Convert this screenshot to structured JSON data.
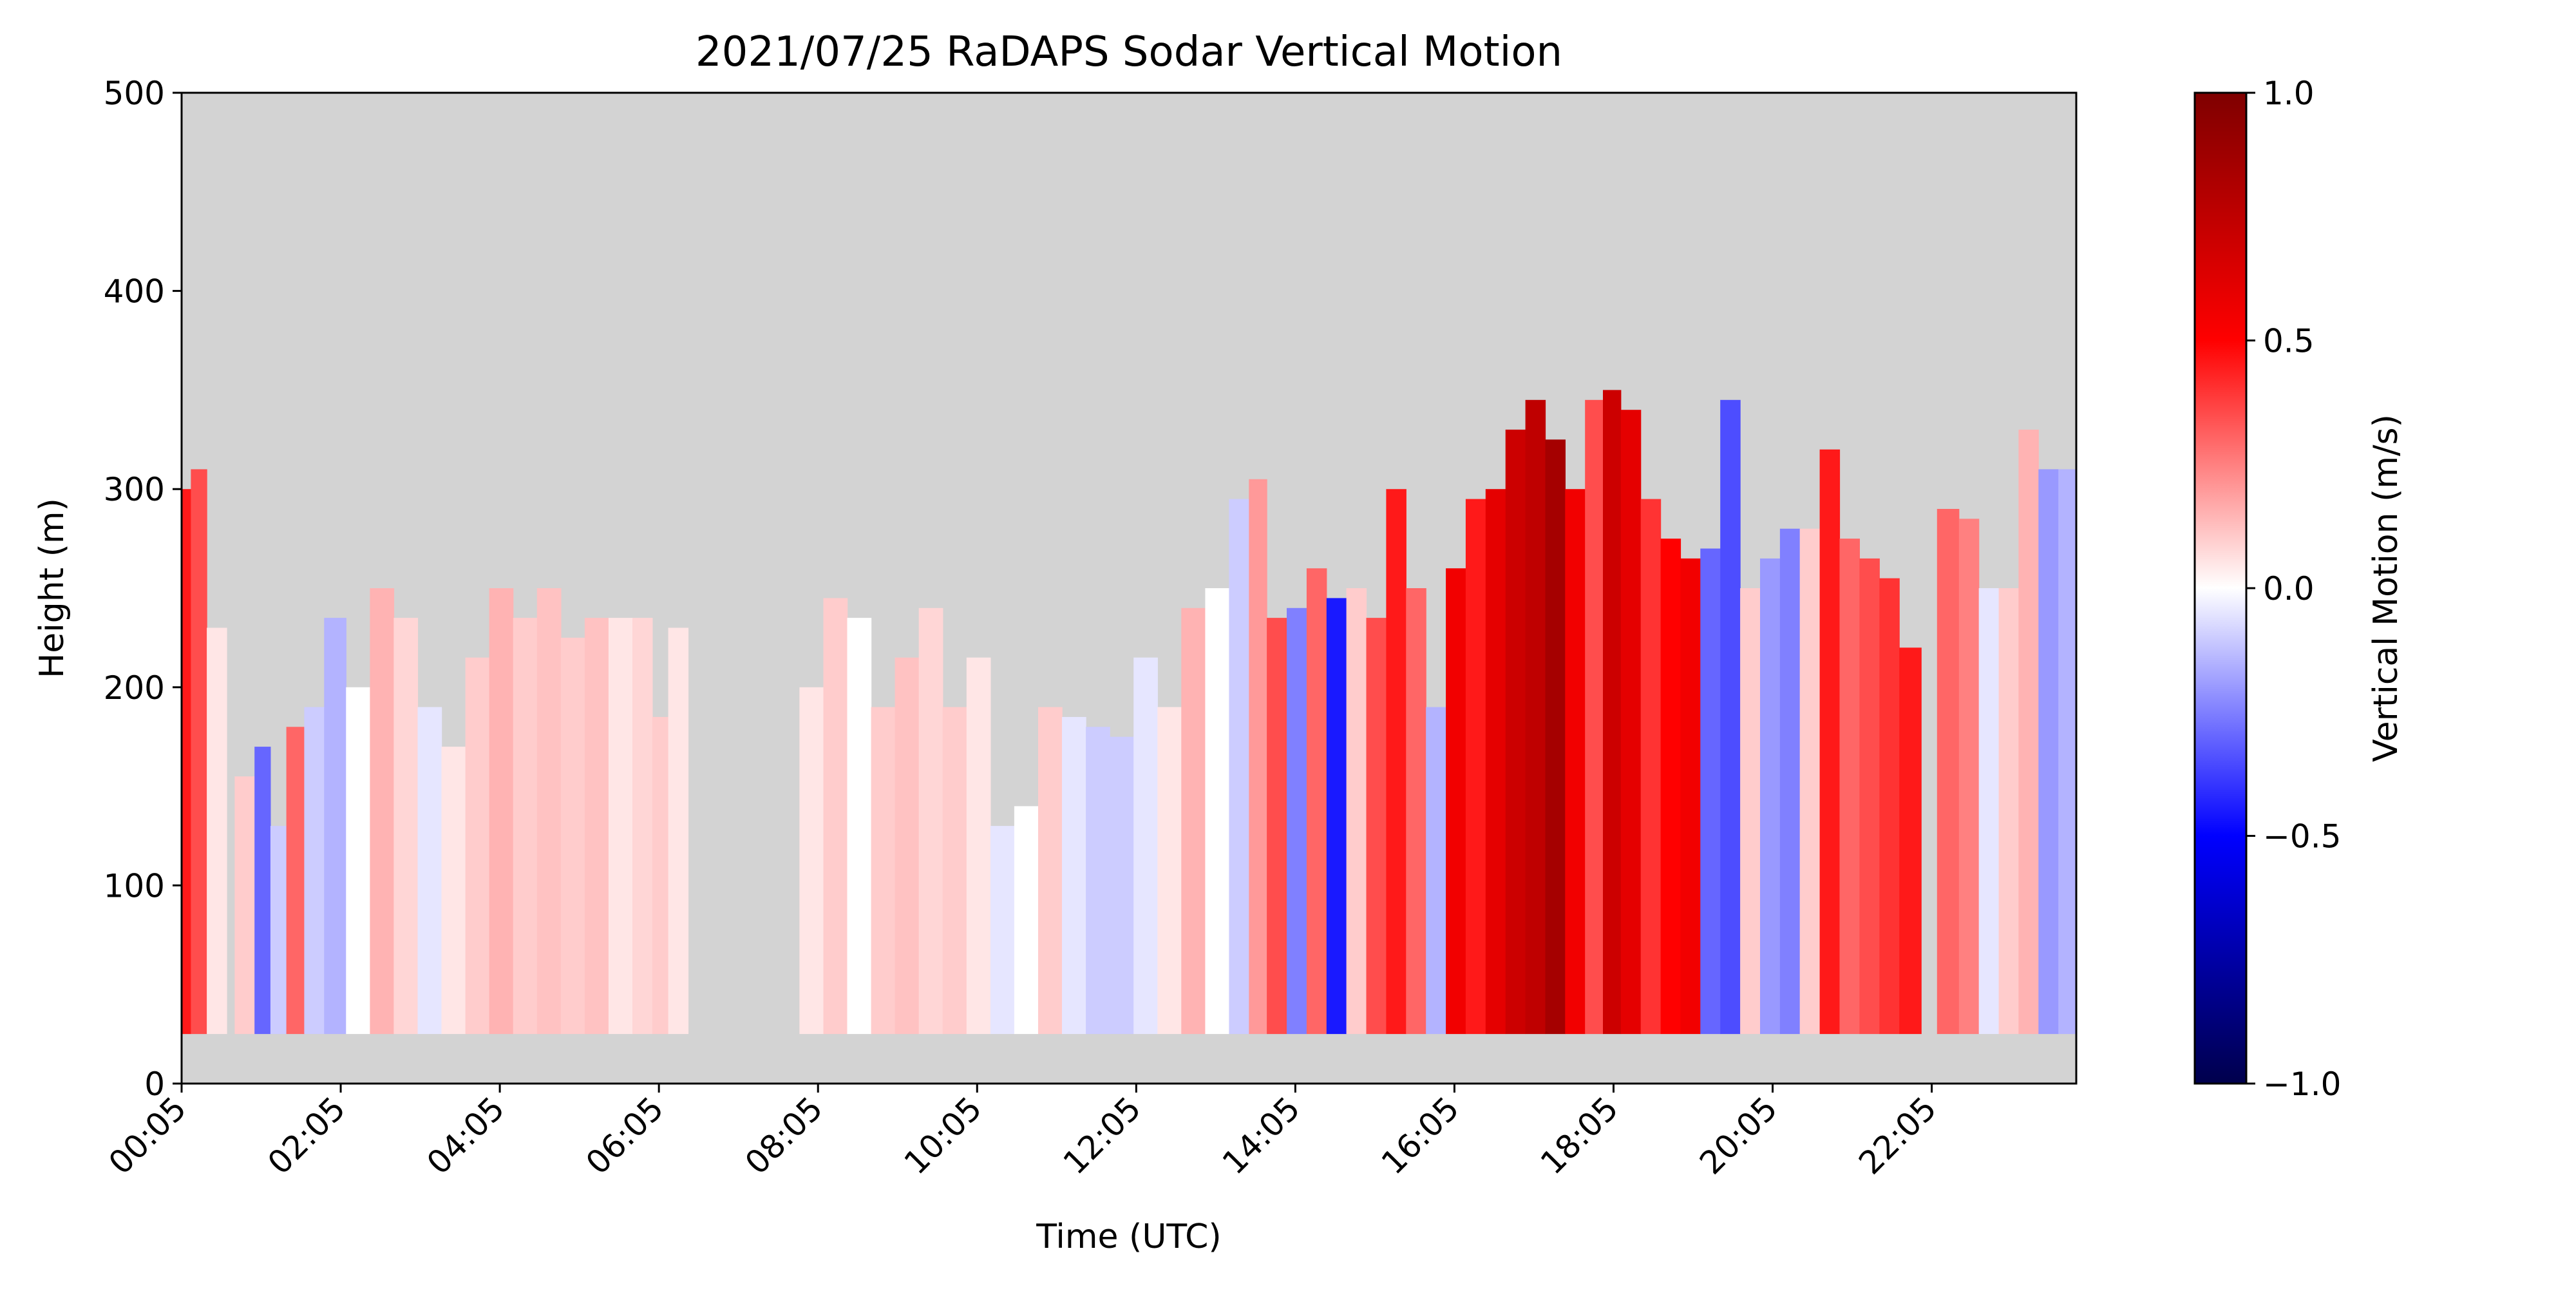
{
  "chart_data": {
    "type": "heatmap",
    "title": "2021/07/25 RaDAPS Sodar Vertical Motion",
    "xlabel": "Time (UTC)",
    "ylabel": "Height (m)",
    "x_tick_labels": [
      "00:05",
      "02:05",
      "04:05",
      "06:05",
      "08:05",
      "10:05",
      "12:05",
      "14:05",
      "16:05",
      "18:05",
      "20:05",
      "22:05"
    ],
    "x_tick_hours": [
      0.0833,
      2.0833,
      4.0833,
      6.0833,
      8.0833,
      10.0833,
      12.0833,
      14.0833,
      16.0833,
      18.0833,
      20.0833,
      22.0833
    ],
    "xlim": [
      0.0833,
      23.9
    ],
    "y_ticks": [
      0,
      100,
      200,
      300,
      400,
      500
    ],
    "ylim": [
      0,
      500
    ],
    "colorbar": {
      "label": "Vertical Motion (m/s)",
      "colormap": "seismic",
      "range": [
        -1.0,
        1.0
      ],
      "ticks": [
        1.0,
        0.5,
        0.0,
        -0.5,
        -1.0
      ],
      "tick_labels": [
        "1.0",
        "0.5",
        "0.0",
        "−0.5",
        "−1.0"
      ]
    },
    "no_data_color": "#d3d3d3",
    "bottom_gate_m": 25,
    "columns": [
      {
        "t": 0.1,
        "top": 300,
        "w": 0.45
      },
      {
        "t": 0.3,
        "top": 310,
        "w": 0.35
      },
      {
        "t": 0.5,
        "top": 230,
        "w": 0.05
      },
      {
        "t": 0.9,
        "top": 155,
        "w": 0.1
      },
      {
        "t": 1.1,
        "top": 170,
        "w": -0.3
      },
      {
        "t": 1.3,
        "top": 130,
        "w": -0.1
      },
      {
        "t": 1.5,
        "top": 180,
        "w": 0.3
      },
      {
        "t": 1.75,
        "top": 190,
        "w": -0.1
      },
      {
        "t": 2.0,
        "top": 235,
        "w": -0.15
      },
      {
        "t": 2.3,
        "top": 200,
        "w": 0.0
      },
      {
        "t": 2.6,
        "top": 250,
        "w": 0.15
      },
      {
        "t": 2.9,
        "top": 235,
        "w": 0.08
      },
      {
        "t": 3.2,
        "top": 190,
        "w": -0.05
      },
      {
        "t": 3.5,
        "top": 170,
        "w": 0.05
      },
      {
        "t": 3.8,
        "top": 215,
        "w": 0.1
      },
      {
        "t": 4.1,
        "top": 250,
        "w": 0.15
      },
      {
        "t": 4.4,
        "top": 235,
        "w": 0.1
      },
      {
        "t": 4.7,
        "top": 250,
        "w": 0.12
      },
      {
        "t": 5.0,
        "top": 225,
        "w": 0.1
      },
      {
        "t": 5.3,
        "top": 235,
        "w": 0.12
      },
      {
        "t": 5.6,
        "top": 235,
        "w": 0.05
      },
      {
        "t": 5.9,
        "top": 235,
        "w": 0.08
      },
      {
        "t": 6.1,
        "top": 185,
        "w": 0.1
      },
      {
        "t": 6.3,
        "top": 230,
        "w": 0.05
      },
      {
        "t": 8.0,
        "top": 200,
        "w": 0.05
      },
      {
        "t": 8.3,
        "top": 245,
        "w": 0.1
      },
      {
        "t": 8.6,
        "top": 235,
        "w": 0.0
      },
      {
        "t": 8.9,
        "top": 190,
        "w": 0.1
      },
      {
        "t": 9.2,
        "top": 215,
        "w": 0.12
      },
      {
        "t": 9.5,
        "top": 240,
        "w": 0.08
      },
      {
        "t": 9.8,
        "top": 190,
        "w": 0.1
      },
      {
        "t": 10.1,
        "top": 215,
        "w": 0.05
      },
      {
        "t": 10.4,
        "top": 130,
        "w": -0.05
      },
      {
        "t": 10.7,
        "top": 140,
        "w": 0.0
      },
      {
        "t": 11.0,
        "top": 190,
        "w": 0.1
      },
      {
        "t": 11.3,
        "top": 185,
        "w": -0.05
      },
      {
        "t": 11.6,
        "top": 180,
        "w": -0.1
      },
      {
        "t": 11.9,
        "top": 175,
        "w": -0.1
      },
      {
        "t": 12.2,
        "top": 215,
        "w": -0.05
      },
      {
        "t": 12.5,
        "top": 190,
        "w": 0.05
      },
      {
        "t": 12.8,
        "top": 240,
        "w": 0.15
      },
      {
        "t": 13.1,
        "top": 250,
        "w": 0.0
      },
      {
        "t": 13.4,
        "top": 295,
        "w": -0.1
      },
      {
        "t": 13.6,
        "top": 305,
        "w": 0.2
      },
      {
        "t": 13.85,
        "top": 235,
        "w": 0.35
      },
      {
        "t": 14.1,
        "top": 240,
        "w": -0.25
      },
      {
        "t": 14.35,
        "top": 260,
        "w": 0.3
      },
      {
        "t": 14.6,
        "top": 245,
        "w": -0.45
      },
      {
        "t": 14.85,
        "top": 250,
        "w": 0.1
      },
      {
        "t": 15.1,
        "top": 235,
        "w": 0.35
      },
      {
        "t": 15.35,
        "top": 300,
        "w": 0.45
      },
      {
        "t": 15.6,
        "top": 250,
        "w": 0.3
      },
      {
        "t": 15.85,
        "top": 190,
        "w": -0.15
      },
      {
        "t": 16.1,
        "top": 260,
        "w": 0.55
      },
      {
        "t": 16.35,
        "top": 295,
        "w": 0.45
      },
      {
        "t": 16.6,
        "top": 300,
        "w": 0.6
      },
      {
        "t": 16.85,
        "top": 330,
        "w": 0.7
      },
      {
        "t": 17.1,
        "top": 345,
        "w": 0.75
      },
      {
        "t": 17.35,
        "top": 325,
        "w": 0.85
      },
      {
        "t": 17.6,
        "top": 300,
        "w": 0.55
      },
      {
        "t": 17.85,
        "top": 345,
        "w": 0.35
      },
      {
        "t": 18.05,
        "top": 350,
        "w": 0.7
      },
      {
        "t": 18.3,
        "top": 340,
        "w": 0.6
      },
      {
        "t": 18.55,
        "top": 295,
        "w": 0.4
      },
      {
        "t": 18.8,
        "top": 275,
        "w": 0.5
      },
      {
        "t": 19.05,
        "top": 265,
        "w": 0.55
      },
      {
        "t": 19.3,
        "top": 270,
        "w": -0.3
      },
      {
        "t": 19.55,
        "top": 345,
        "w": -0.35
      },
      {
        "t": 19.8,
        "top": 250,
        "w": 0.1
      },
      {
        "t": 20.05,
        "top": 265,
        "w": -0.2
      },
      {
        "t": 20.3,
        "top": 280,
        "w": -0.25
      },
      {
        "t": 20.55,
        "top": 280,
        "w": 0.1
      },
      {
        "t": 20.8,
        "top": 320,
        "w": 0.45
      },
      {
        "t": 21.05,
        "top": 275,
        "w": 0.3
      },
      {
        "t": 21.3,
        "top": 265,
        "w": 0.35
      },
      {
        "t": 21.55,
        "top": 255,
        "w": 0.4
      },
      {
        "t": 21.8,
        "top": 220,
        "w": 0.45
      },
      {
        "t": 22.3,
        "top": 290,
        "w": 0.3
      },
      {
        "t": 22.55,
        "top": 285,
        "w": 0.25
      },
      {
        "t": 22.8,
        "top": 250,
        "w": -0.05
      },
      {
        "t": 23.05,
        "top": 250,
        "w": 0.1
      },
      {
        "t": 23.3,
        "top": 330,
        "w": 0.15
      },
      {
        "t": 23.55,
        "top": 310,
        "w": -0.2
      },
      {
        "t": 23.8,
        "top": 310,
        "w": -0.15
      }
    ]
  }
}
